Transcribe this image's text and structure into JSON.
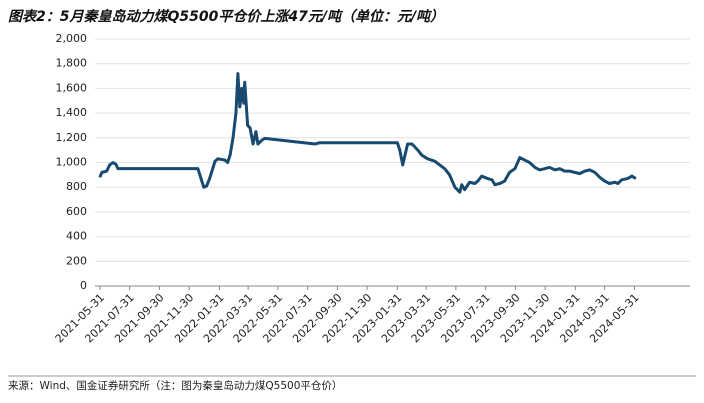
{
  "chart_data": {
    "type": "line",
    "title": "图表2：5月秦皇岛动力煤Q5500平仓价上涨47元/吨（单位：元/吨）",
    "source": "来源：Wind、国金证券研究所（注：图为秦皇岛动力煤Q5500平仓价）",
    "x": [
      "2021-05-31",
      "2021-06-04",
      "2021-06-14",
      "2021-06-20",
      "2021-06-27",
      "2021-07-03",
      "2021-07-07",
      "2021-12-18",
      "2021-12-30",
      "2022-01-05",
      "2022-01-11",
      "2022-01-22",
      "2022-01-28",
      "2022-02-11",
      "2022-02-17",
      "2022-02-22",
      "2022-02-28",
      "2022-03-06",
      "2022-03-10",
      "2022-03-14",
      "2022-03-18",
      "2022-03-22",
      "2022-03-24",
      "2022-03-30",
      "2022-04-04",
      "2022-04-10",
      "2022-04-16",
      "2022-04-20",
      "2022-04-28",
      "2022-05-04",
      "2022-08-15",
      "2022-08-25",
      "2023-01-31",
      "2023-02-05",
      "2023-02-11",
      "2023-02-15",
      "2023-02-21",
      "2023-03-02",
      "2023-03-14",
      "2023-03-22",
      "2023-04-03",
      "2023-04-18",
      "2023-05-08",
      "2023-05-18",
      "2023-05-29",
      "2023-06-08",
      "2023-06-12",
      "2023-06-18",
      "2023-06-28",
      "2023-07-09",
      "2023-07-15",
      "2023-07-23",
      "2023-08-04",
      "2023-08-13",
      "2023-08-19",
      "2023-08-29",
      "2023-09-08",
      "2023-09-18",
      "2023-09-29",
      "2023-10-09",
      "2023-10-19",
      "2023-10-29",
      "2023-11-09",
      "2023-11-19",
      "2023-11-29",
      "2023-12-09",
      "2023-12-20",
      "2023-12-30",
      "2024-01-09",
      "2024-01-19",
      "2024-02-09",
      "2024-02-19",
      "2024-02-29",
      "2024-03-11",
      "2024-03-21",
      "2024-03-31",
      "2024-04-10",
      "2024-04-21",
      "2024-04-27",
      "2024-05-05",
      "2024-05-17",
      "2024-05-26",
      "2024-06-03"
    ],
    "series": [
      {
        "color": "#174a6e",
        "values": [
          880,
          920,
          930,
          980,
          1000,
          985,
          950,
          950,
          800,
          810,
          870,
          1010,
          1030,
          1020,
          1000,
          1060,
          1200,
          1400,
          1720,
          1450,
          1600,
          1480,
          1650,
          1300,
          1280,
          1150,
          1250,
          1150,
          1180,
          1195,
          1150,
          1160,
          1160,
          1100,
          980,
          1050,
          1150,
          1150,
          1100,
          1060,
          1030,
          1010,
          950,
          900,
          800,
          760,
          820,
          780,
          840,
          830,
          850,
          890,
          870,
          860,
          820,
          830,
          850,
          920,
          950,
          1040,
          1020,
          1000,
          960,
          940,
          950,
          960,
          940,
          950,
          930,
          930,
          910,
          930,
          940,
          920,
          880,
          850,
          830,
          840,
          830,
          860,
          870,
          890,
          870
        ]
      }
    ],
    "xlim": [
      "2021-05-21",
      "2024-09-22"
    ],
    "xticks": [
      "2021-05-31",
      "2021-07-31",
      "2021-09-30",
      "2021-11-30",
      "2022-01-31",
      "2022-03-31",
      "2022-05-31",
      "2022-07-31",
      "2022-09-30",
      "2022-11-30",
      "2023-01-31",
      "2023-03-31",
      "2023-05-31",
      "2023-07-31",
      "2023-09-30",
      "2023-11-30",
      "2024-01-31",
      "2024-03-31",
      "2024-05-31"
    ],
    "ylim": [
      0,
      2000
    ],
    "yticks": [
      0,
      200,
      400,
      600,
      800,
      {
        "value": 1000,
        "label": "1,000"
      },
      {
        "value": 1200,
        "label": "1,200"
      },
      {
        "value": 1400,
        "label": "1,400"
      },
      {
        "value": 1600,
        "label": "1,600"
      },
      {
        "value": 1800,
        "label": "1,800"
      },
      {
        "value": 2000,
        "label": "2,000"
      }
    ],
    "grid": true
  }
}
